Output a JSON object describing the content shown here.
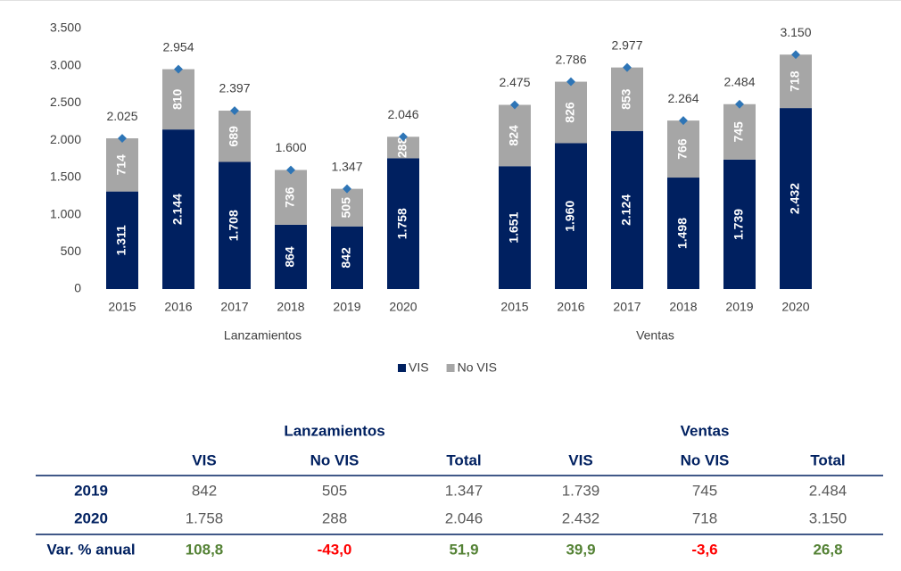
{
  "chart_data": {
    "type": "bar",
    "stacked": true,
    "group_labels": [
      "Lanzamientos",
      "Ventas"
    ],
    "categories": [
      "2015",
      "2016",
      "2017",
      "2018",
      "2019",
      "2020",
      "2015",
      "2016",
      "2017",
      "2018",
      "2019",
      "2020"
    ],
    "series": [
      {
        "name": "VIS",
        "color": "#002060",
        "values": [
          1311,
          2144,
          1708,
          864,
          842,
          1758,
          1651,
          1960,
          2124,
          1498,
          1739,
          2432
        ],
        "value_labels": [
          "1.311",
          "2.144",
          "1.708",
          "864",
          "842",
          "1.758",
          "1.651",
          "1.960",
          "2.124",
          "1.498",
          "1.739",
          "2.432"
        ]
      },
      {
        "name": "No VIS",
        "color": "#a6a6a6",
        "values": [
          714,
          810,
          689,
          736,
          505,
          288,
          824,
          826,
          853,
          766,
          745,
          718
        ],
        "value_labels": [
          "714",
          "810",
          "689",
          "736",
          "505",
          "288",
          "824",
          "826",
          "853",
          "766",
          "745",
          "718"
        ]
      }
    ],
    "totals": {
      "color": "#2e75b6",
      "values": [
        2025,
        2954,
        2397,
        1600,
        1347,
        2046,
        2475,
        2786,
        2977,
        2264,
        2484,
        3150
      ],
      "value_labels": [
        "2.025",
        "2.954",
        "2.397",
        "1.600",
        "1.347",
        "2.046",
        "2.475",
        "2.786",
        "2.977",
        "2.264",
        "2.484",
        "3.150"
      ]
    },
    "ylim": [
      0,
      3500
    ],
    "yticks": [
      0,
      500,
      {
        "value": 1000,
        "label": "1.000"
      },
      {
        "value": 1500,
        "label": "1.500"
      },
      {
        "value": 2000,
        "label": "2.000"
      },
      {
        "value": 2500,
        "label": "2.500"
      },
      {
        "value": 3000,
        "label": "3.000"
      },
      {
        "value": 3500,
        "label": "3.500"
      }
    ],
    "grid": false,
    "legend": "bottom"
  },
  "table": {
    "group_headers": [
      "Lanzamientos",
      "Ventas"
    ],
    "columns": [
      "VIS",
      "No VIS",
      "Total",
      "VIS",
      "No VIS",
      "Total"
    ],
    "rows": [
      [
        "2019",
        "842",
        "505",
        "1.347",
        "1.739",
        "745",
        "2.484"
      ],
      [
        "2020",
        "1.758",
        "288",
        "2.046",
        "2.432",
        "718",
        "3.150"
      ],
      [
        "Var. % anual",
        "108,8",
        "-43,0",
        "51,9",
        "39,9",
        "-3,6",
        "26,8"
      ]
    ],
    "positive_color": "#548235",
    "negative_color": "#ff0000",
    "header_color": "#002060"
  }
}
